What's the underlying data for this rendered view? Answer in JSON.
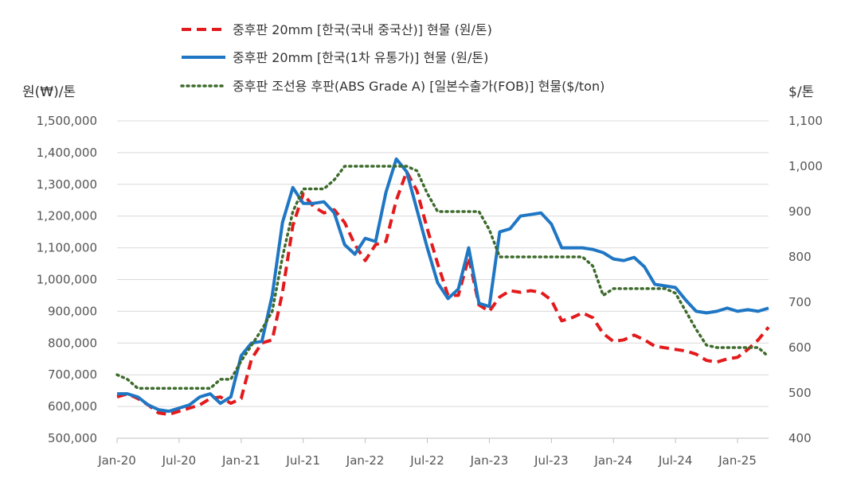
{
  "chart_data": {
    "type": "line",
    "y_left_label": "원(₩)/톤",
    "y_right_label": "$/톤",
    "y_left_ticks": [
      "500,000",
      "600,000",
      "700,000",
      "800,000",
      "900,000",
      "1,000,000",
      "1,100,000",
      "1,200,000",
      "1,300,000",
      "1,400,000",
      "1,500,000"
    ],
    "y_right_ticks": [
      "400",
      "500",
      "600",
      "700",
      "800",
      "900",
      "1,000",
      "1,100"
    ],
    "x_ticks": [
      "Jan-20",
      "Jul-20",
      "Jan-21",
      "Jul-21",
      "Jan-22",
      "Jul-22",
      "Jan-23",
      "Jul-23",
      "Jan-24",
      "Jul-24",
      "Jan-25"
    ],
    "ylim_left": [
      500000,
      1500000
    ],
    "ylim_right": [
      400,
      1100
    ],
    "x_range": [
      "2020-01",
      "2025-04"
    ],
    "grid": true,
    "legend_position": "top",
    "series": [
      {
        "name": "중후판 20mm [한국(국내 중국산)] 현물 (원/톤)",
        "axis": "left",
        "color": "#e31a1c",
        "style": "dashed",
        "points": [
          [
            "2020-01",
            630000
          ],
          [
            "2020-02",
            640000
          ],
          [
            "2020-03",
            625000
          ],
          [
            "2020-04",
            605000
          ],
          [
            "2020-05",
            580000
          ],
          [
            "2020-06",
            575000
          ],
          [
            "2020-07",
            585000
          ],
          [
            "2020-08",
            595000
          ],
          [
            "2020-09",
            605000
          ],
          [
            "2020-10",
            625000
          ],
          [
            "2020-11",
            630000
          ],
          [
            "2020-12",
            610000
          ],
          [
            "2021-01",
            625000
          ],
          [
            "2021-02",
            750000
          ],
          [
            "2021-03",
            800000
          ],
          [
            "2021-04",
            810000
          ],
          [
            "2021-05",
            960000
          ],
          [
            "2021-06",
            1170000
          ],
          [
            "2021-07",
            1270000
          ],
          [
            "2021-08",
            1230000
          ],
          [
            "2021-09",
            1210000
          ],
          [
            "2021-10",
            1220000
          ],
          [
            "2021-11",
            1180000
          ],
          [
            "2021-12",
            1110000
          ],
          [
            "2022-01",
            1060000
          ],
          [
            "2022-02",
            1110000
          ],
          [
            "2022-03",
            1120000
          ],
          [
            "2022-04",
            1250000
          ],
          [
            "2022-05",
            1340000
          ],
          [
            "2022-06",
            1280000
          ],
          [
            "2022-07",
            1160000
          ],
          [
            "2022-08",
            1050000
          ],
          [
            "2022-09",
            950000
          ],
          [
            "2022-10",
            950000
          ],
          [
            "2022-11",
            1070000
          ],
          [
            "2022-12",
            920000
          ],
          [
            "2023-01",
            900000
          ],
          [
            "2023-02",
            945000
          ],
          [
            "2023-03",
            965000
          ],
          [
            "2023-04",
            960000
          ],
          [
            "2023-05",
            965000
          ],
          [
            "2023-06",
            960000
          ],
          [
            "2023-07",
            935000
          ],
          [
            "2023-08",
            870000
          ],
          [
            "2023-09",
            880000
          ],
          [
            "2023-10",
            895000
          ],
          [
            "2023-11",
            880000
          ],
          [
            "2023-12",
            830000
          ],
          [
            "2024-01",
            805000
          ],
          [
            "2024-02",
            810000
          ],
          [
            "2024-03",
            825000
          ],
          [
            "2024-04",
            810000
          ],
          [
            "2024-05",
            790000
          ],
          [
            "2024-06",
            785000
          ],
          [
            "2024-07",
            780000
          ],
          [
            "2024-08",
            775000
          ],
          [
            "2024-09",
            765000
          ],
          [
            "2024-10",
            745000
          ],
          [
            "2024-11",
            740000
          ],
          [
            "2024-12",
            750000
          ],
          [
            "2025-01",
            755000
          ],
          [
            "2025-02",
            780000
          ],
          [
            "2025-03",
            810000
          ],
          [
            "2025-04",
            850000
          ]
        ]
      },
      {
        "name": "중후판 20mm [한국(1차 유통가)] 현물 (원/톤)",
        "axis": "left",
        "color": "#1f77c4",
        "style": "solid",
        "points": [
          [
            "2020-01",
            640000
          ],
          [
            "2020-02",
            640000
          ],
          [
            "2020-03",
            630000
          ],
          [
            "2020-04",
            605000
          ],
          [
            "2020-05",
            590000
          ],
          [
            "2020-06",
            585000
          ],
          [
            "2020-07",
            595000
          ],
          [
            "2020-08",
            605000
          ],
          [
            "2020-09",
            630000
          ],
          [
            "2020-10",
            640000
          ],
          [
            "2020-11",
            610000
          ],
          [
            "2020-12",
            630000
          ],
          [
            "2021-01",
            760000
          ],
          [
            "2021-02",
            800000
          ],
          [
            "2021-03",
            805000
          ],
          [
            "2021-04",
            950000
          ],
          [
            "2021-05",
            1180000
          ],
          [
            "2021-06",
            1290000
          ],
          [
            "2021-07",
            1240000
          ],
          [
            "2021-08",
            1240000
          ],
          [
            "2021-09",
            1245000
          ],
          [
            "2021-10",
            1210000
          ],
          [
            "2021-11",
            1110000
          ],
          [
            "2021-12",
            1080000
          ],
          [
            "2022-01",
            1130000
          ],
          [
            "2022-02",
            1120000
          ],
          [
            "2022-03",
            1275000
          ],
          [
            "2022-04",
            1380000
          ],
          [
            "2022-05",
            1340000
          ],
          [
            "2022-06",
            1220000
          ],
          [
            "2022-07",
            1100000
          ],
          [
            "2022-08",
            990000
          ],
          [
            "2022-09",
            940000
          ],
          [
            "2022-10",
            970000
          ],
          [
            "2022-11",
            1100000
          ],
          [
            "2022-12",
            925000
          ],
          [
            "2023-01",
            915000
          ],
          [
            "2023-02",
            1150000
          ],
          [
            "2023-03",
            1160000
          ],
          [
            "2023-04",
            1200000
          ],
          [
            "2023-05",
            1205000
          ],
          [
            "2023-06",
            1210000
          ],
          [
            "2023-07",
            1175000
          ],
          [
            "2023-08",
            1100000
          ],
          [
            "2023-09",
            1100000
          ],
          [
            "2023-10",
            1100000
          ],
          [
            "2023-11",
            1095000
          ],
          [
            "2023-12",
            1085000
          ],
          [
            "2024-01",
            1065000
          ],
          [
            "2024-02",
            1060000
          ],
          [
            "2024-03",
            1070000
          ],
          [
            "2024-04",
            1040000
          ],
          [
            "2024-05",
            985000
          ],
          [
            "2024-06",
            980000
          ],
          [
            "2024-07",
            975000
          ],
          [
            "2024-08",
            935000
          ],
          [
            "2024-09",
            900000
          ],
          [
            "2024-10",
            895000
          ],
          [
            "2024-11",
            900000
          ],
          [
            "2024-12",
            910000
          ],
          [
            "2025-01",
            900000
          ],
          [
            "2025-02",
            905000
          ],
          [
            "2025-03",
            900000
          ],
          [
            "2025-04",
            910000
          ]
        ]
      },
      {
        "name": "중후판 조선용 후판(ABS Grade A) [일본수출가(FOB)] 현물($/ton)",
        "axis": "right",
        "color": "#3d6b2c",
        "style": "dotted",
        "points": [
          [
            "2020-01",
            540
          ],
          [
            "2020-02",
            530
          ],
          [
            "2020-03",
            510
          ],
          [
            "2020-04",
            510
          ],
          [
            "2020-05",
            510
          ],
          [
            "2020-06",
            510
          ],
          [
            "2020-07",
            510
          ],
          [
            "2020-08",
            510
          ],
          [
            "2020-09",
            510
          ],
          [
            "2020-10",
            510
          ],
          [
            "2020-11",
            530
          ],
          [
            "2020-12",
            530
          ],
          [
            "2021-01",
            570
          ],
          [
            "2021-02",
            605
          ],
          [
            "2021-03",
            640
          ],
          [
            "2021-04",
            680
          ],
          [
            "2021-05",
            800
          ],
          [
            "2021-06",
            900
          ],
          [
            "2021-07",
            950
          ],
          [
            "2021-08",
            950
          ],
          [
            "2021-09",
            950
          ],
          [
            "2021-10",
            970
          ],
          [
            "2021-11",
            1000
          ],
          [
            "2021-12",
            1000
          ],
          [
            "2022-01",
            1000
          ],
          [
            "2022-02",
            1000
          ],
          [
            "2022-03",
            1000
          ],
          [
            "2022-04",
            1000
          ],
          [
            "2022-05",
            1000
          ],
          [
            "2022-06",
            990
          ],
          [
            "2022-07",
            940
          ],
          [
            "2022-08",
            900
          ],
          [
            "2022-09",
            900
          ],
          [
            "2022-10",
            900
          ],
          [
            "2022-11",
            900
          ],
          [
            "2022-12",
            900
          ],
          [
            "2023-01",
            860
          ],
          [
            "2023-02",
            800
          ],
          [
            "2023-03",
            800
          ],
          [
            "2023-04",
            800
          ],
          [
            "2023-05",
            800
          ],
          [
            "2023-06",
            800
          ],
          [
            "2023-07",
            800
          ],
          [
            "2023-08",
            800
          ],
          [
            "2023-09",
            800
          ],
          [
            "2023-10",
            800
          ],
          [
            "2023-11",
            780
          ],
          [
            "2023-12",
            715
          ],
          [
            "2024-01",
            730
          ],
          [
            "2024-02",
            730
          ],
          [
            "2024-03",
            730
          ],
          [
            "2024-04",
            730
          ],
          [
            "2024-05",
            730
          ],
          [
            "2024-06",
            730
          ],
          [
            "2024-07",
            720
          ],
          [
            "2024-08",
            680
          ],
          [
            "2024-09",
            640
          ],
          [
            "2024-10",
            605
          ],
          [
            "2024-11",
            600
          ],
          [
            "2024-12",
            600
          ],
          [
            "2025-01",
            600
          ],
          [
            "2025-02",
            600
          ],
          [
            "2025-03",
            600
          ],
          [
            "2025-04",
            580
          ]
        ]
      }
    ]
  }
}
